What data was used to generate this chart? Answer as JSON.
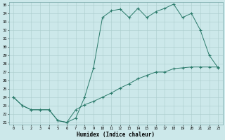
{
  "xlabel": "Humidex (Indice chaleur)",
  "background_color": "#cce8ea",
  "grid_color": "#aacccc",
  "line_color": "#2a7a6a",
  "ylim_min": 21,
  "ylim_max": 35,
  "xlim_min": 0,
  "xlim_max": 23,
  "ytick_vals": [
    21,
    22,
    23,
    24,
    25,
    26,
    27,
    28,
    29,
    30,
    31,
    32,
    33,
    34,
    35
  ],
  "xtick_vals": [
    0,
    1,
    2,
    3,
    4,
    5,
    6,
    7,
    8,
    9,
    10,
    11,
    12,
    13,
    14,
    15,
    16,
    17,
    18,
    19,
    20,
    21,
    22,
    23
  ],
  "line1_x": [
    0,
    1,
    2,
    3,
    4,
    5,
    6,
    7,
    8,
    9,
    10,
    11,
    12,
    13,
    14,
    15,
    16,
    17,
    18,
    19,
    20,
    21,
    22,
    23
  ],
  "line1_y": [
    24.0,
    23.0,
    22.5,
    22.5,
    22.5,
    21.2,
    21.0,
    21.5,
    24.0,
    27.5,
    33.5,
    34.3,
    34.5,
    33.5,
    34.6,
    33.5,
    34.2,
    34.6,
    35.1,
    33.5,
    34.0,
    32.0,
    29.0,
    27.5
  ],
  "line2_x": [
    0,
    1,
    2,
    3,
    4,
    5,
    6,
    7,
    8,
    9,
    10,
    11,
    12,
    13,
    14,
    15,
    16,
    17,
    18,
    19,
    20,
    21,
    22,
    23
  ],
  "line2_y": [
    24.0,
    23.0,
    22.5,
    22.5,
    22.5,
    21.2,
    21.0,
    22.5,
    23.1,
    23.5,
    24.0,
    24.5,
    25.1,
    25.6,
    26.2,
    26.6,
    27.0,
    27.0,
    27.4,
    27.5,
    27.6,
    27.6,
    27.6,
    27.6
  ]
}
